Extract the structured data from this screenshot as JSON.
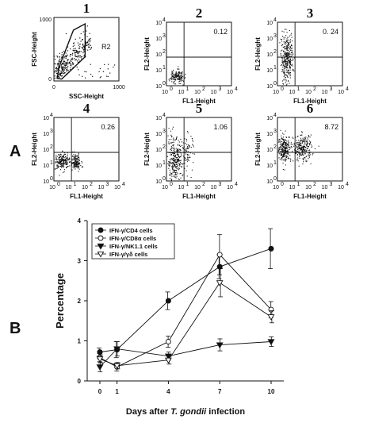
{
  "figure_labels": {
    "a": "A",
    "b": "B"
  },
  "panels_a": [
    {
      "number": "1",
      "type": "gate",
      "xlabel": "SSC-Height",
      "ylabel": "FSC-Height",
      "xticks": [
        "0",
        "1000"
      ],
      "yticks": [
        "0",
        "1000"
      ],
      "gate_label": "R2",
      "value": ""
    },
    {
      "number": "2",
      "type": "quadrant",
      "xlabel": "FL1-Height",
      "ylabel": "FL2-Height",
      "value": "0.12"
    },
    {
      "number": "3",
      "type": "quadrant",
      "xlabel": "FL1-Height",
      "ylabel": "FL2-Height",
      "value": "0. 24"
    },
    {
      "number": "4",
      "type": "quadrant",
      "xlabel": "FL1-Height",
      "ylabel": "FL2-Height",
      "value": "0.26"
    },
    {
      "number": "5",
      "type": "quadrant",
      "xlabel": "FL1-Height",
      "ylabel": "FL2-Height",
      "value": "1.06"
    },
    {
      "number": "6",
      "type": "quadrant",
      "xlabel": "FL1-Height",
      "ylabel": "FL2-Height",
      "value": "8.72"
    }
  ],
  "log_ticks": [
    "10",
    "10",
    "10",
    "10",
    "10"
  ],
  "log_exps": [
    "0",
    "1",
    "2",
    "3",
    "4"
  ],
  "chart_data": {
    "type": "line",
    "xlabel_prefix": "Days after ",
    "xlabel_italic": "T. gondii",
    "xlabel_suffix": " infection",
    "ylabel": "Percentage",
    "x": [
      0,
      1,
      4,
      7,
      10
    ],
    "ylim": [
      0,
      4
    ],
    "yticks": [
      0,
      1,
      2,
      3,
      4
    ],
    "legend_position": "top-left",
    "series": [
      {
        "name": "IFN-γ/CD4 cells",
        "marker": "filled-circle",
        "values": [
          0.72,
          0.78,
          2.0,
          2.85,
          3.3
        ],
        "errors": [
          0.1,
          0.2,
          0.22,
          0.3,
          0.5
        ]
      },
      {
        "name": "IFN-γ/CD8α cells",
        "marker": "open-circle",
        "values": [
          0.58,
          0.35,
          0.98,
          3.15,
          1.78
        ],
        "errors": [
          0.1,
          0.1,
          0.14,
          0.5,
          0.2
        ]
      },
      {
        "name": "IFN-γ/NK1.1 cells",
        "marker": "filled-triangle-down",
        "values": [
          0.35,
          0.8,
          0.62,
          0.9,
          0.98
        ],
        "errors": [
          0.12,
          0.18,
          0.1,
          0.15,
          0.12
        ]
      },
      {
        "name": "IFN-γ/γδ cells",
        "marker": "open-triangle-down",
        "values": [
          0.55,
          0.38,
          0.52,
          2.45,
          1.6
        ],
        "errors": [
          0.1,
          0.08,
          0.1,
          0.35,
          0.15
        ]
      }
    ]
  }
}
